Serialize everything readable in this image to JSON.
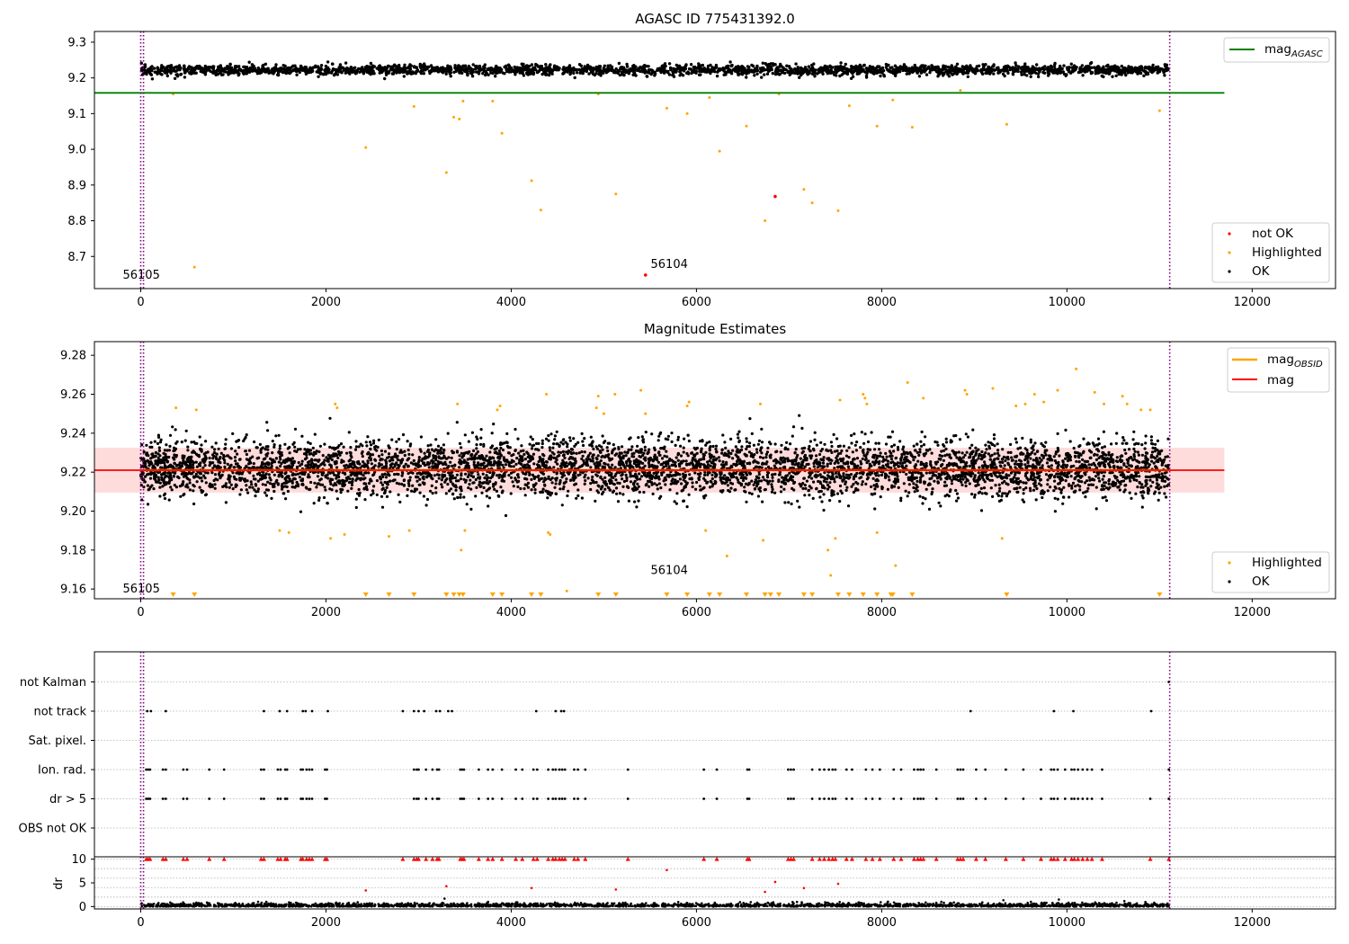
{
  "figure": {
    "colors": {
      "ok": "#000000",
      "highlighted": "#FFA500",
      "not_ok": "#FF0000",
      "mag_agasc": "#008000",
      "mag_obsid": "#FFA500",
      "mag": "#FF0000",
      "band": "#FFC0C0",
      "obs_boundary": "#800080",
      "grid": "#B0B0B0"
    }
  },
  "chart_data": [
    {
      "type": "scatter",
      "title": "AGASC ID 775431392.0",
      "xlim": [
        -500,
        12900
      ],
      "ylim": [
        8.61,
        9.33
      ],
      "x_ticks": [
        0,
        2000,
        4000,
        6000,
        8000,
        10000,
        12000
      ],
      "x_tick_labels": [
        "0",
        "2000",
        "4000",
        "6000",
        "8000",
        "10000",
        "12000"
      ],
      "y_ticks": [
        8.7,
        8.8,
        8.9,
        9.0,
        9.1,
        9.2,
        9.3
      ],
      "y_tick_labels": [
        "8.7",
        "8.8",
        "8.9",
        "9.0",
        "9.1",
        "9.2",
        "9.3"
      ],
      "obs_boundaries": [
        0,
        30,
        11110
      ],
      "annotations": [
        {
          "text": "56105",
          "x": 0,
          "y": 8.65
        },
        {
          "text": "56104",
          "x": 5700,
          "y": 8.68
        }
      ],
      "reference_lines": [
        {
          "name": "mag_AGASC",
          "label_main": "mag",
          "label_sub": "AGASC",
          "y": 9.158,
          "x_range": [
            -500,
            11700
          ]
        }
      ],
      "ok_band": {
        "center": 9.222,
        "spread": 0.013,
        "x_range": [
          0,
          11100
        ]
      },
      "series": [
        {
          "name": "not OK",
          "points": [
            [
              6850,
              8.868
            ],
            [
              5450,
              8.648
            ]
          ]
        },
        {
          "name": "Highlighted",
          "points": [
            [
              350,
              9.155
            ],
            [
              580,
              8.67
            ],
            [
              2430,
              9.005
            ],
            [
              2950,
              9.12
            ],
            [
              3300,
              8.935
            ],
            [
              3380,
              9.09
            ],
            [
              3440,
              9.085
            ],
            [
              3480,
              9.135
            ],
            [
              3800,
              9.135
            ],
            [
              3900,
              9.045
            ],
            [
              4220,
              8.912
            ],
            [
              4320,
              8.83
            ],
            [
              4940,
              9.155
            ],
            [
              5130,
              8.875
            ],
            [
              5680,
              9.115
            ],
            [
              5900,
              9.1
            ],
            [
              6140,
              9.145
            ],
            [
              6250,
              8.995
            ],
            [
              6540,
              9.065
            ],
            [
              6740,
              8.8
            ],
            [
              6890,
              9.155
            ],
            [
              7160,
              8.888
            ],
            [
              7250,
              8.85
            ],
            [
              7530,
              8.828
            ],
            [
              7650,
              9.122
            ],
            [
              7950,
              9.065
            ],
            [
              8120,
              9.138
            ],
            [
              8330,
              9.062
            ],
            [
              8850,
              9.165
            ],
            [
              9350,
              9.07
            ],
            [
              11000,
              9.108
            ]
          ]
        },
        {
          "name": "OK"
        }
      ],
      "legend": {
        "position": "lower right",
        "entries": [
          "not OK",
          "Highlighted",
          "OK"
        ]
      }
    },
    {
      "type": "scatter",
      "title": "Magnitude Estimates",
      "xlim": [
        -500,
        12900
      ],
      "ylim": [
        9.155,
        9.287
      ],
      "x_ticks": [
        0,
        2000,
        4000,
        6000,
        8000,
        10000,
        12000
      ],
      "x_tick_labels": [
        "0",
        "2000",
        "4000",
        "6000",
        "8000",
        "10000",
        "12000"
      ],
      "y_ticks": [
        9.16,
        9.18,
        9.2,
        9.22,
        9.24,
        9.26,
        9.28
      ],
      "y_tick_labels": [
        "9.16",
        "9.18",
        "9.20",
        "9.22",
        "9.24",
        "9.26",
        "9.28"
      ],
      "obs_boundaries": [
        0,
        30,
        11110
      ],
      "annotations": [
        {
          "text": "56105",
          "x": 0,
          "y": 9.1605
        },
        {
          "text": "56104",
          "x": 5700,
          "y": 9.17
        }
      ],
      "reference_lines": [
        {
          "name": "mag_OBSID",
          "label_main": "mag",
          "label_sub": "OBSID",
          "y": 9.221,
          "x_range": [
            0,
            11100
          ]
        },
        {
          "name": "mag",
          "label_main": "mag",
          "label_sub": "",
          "y": 9.221,
          "x_range": [
            -500,
            11700
          ]
        }
      ],
      "mag_band": {
        "y_range": [
          9.2095,
          9.2325
        ],
        "x_range": [
          -500,
          11700
        ]
      },
      "ok_band": {
        "center": 9.222,
        "spread": 0.013,
        "x_range": [
          0,
          11100
        ]
      },
      "out_of_range_markers_x": [
        350,
        580,
        2430,
        2680,
        2950,
        3300,
        3380,
        3440,
        3480,
        3800,
        3900,
        4220,
        4320,
        4940,
        5130,
        5680,
        5900,
        6140,
        6250,
        6540,
        6740,
        6800,
        6890,
        7160,
        7250,
        7530,
        7650,
        7800,
        7950,
        8100,
        8120,
        8330,
        9350,
        11000
      ],
      "series": [
        {
          "name": "Highlighted",
          "points": [
            [
              380,
              9.253
            ],
            [
              600,
              9.252
            ],
            [
              1500,
              9.19
            ],
            [
              1600,
              9.189
            ],
            [
              2050,
              9.186
            ],
            [
              2100,
              9.255
            ],
            [
              2120,
              9.253
            ],
            [
              2200,
              9.188
            ],
            [
              2680,
              9.187
            ],
            [
              2900,
              9.19
            ],
            [
              3420,
              9.255
            ],
            [
              3460,
              9.18
            ],
            [
              3500,
              9.19
            ],
            [
              3850,
              9.252
            ],
            [
              3880,
              9.254
            ],
            [
              4380,
              9.26
            ],
            [
              4400,
              9.189
            ],
            [
              4420,
              9.188
            ],
            [
              4600,
              9.159
            ],
            [
              4920,
              9.253
            ],
            [
              4940,
              9.259
            ],
            [
              5000,
              9.25
            ],
            [
              5120,
              9.26
            ],
            [
              5400,
              9.262
            ],
            [
              5450,
              9.25
            ],
            [
              5900,
              9.254
            ],
            [
              5920,
              9.256
            ],
            [
              6100,
              9.19
            ],
            [
              6330,
              9.177
            ],
            [
              6690,
              9.255
            ],
            [
              6720,
              9.185
            ],
            [
              7420,
              9.18
            ],
            [
              7450,
              9.167
            ],
            [
              7500,
              9.186
            ],
            [
              7550,
              9.257
            ],
            [
              7800,
              9.26
            ],
            [
              7820,
              9.258
            ],
            [
              7840,
              9.255
            ],
            [
              7950,
              9.189
            ],
            [
              8150,
              9.172
            ],
            [
              8280,
              9.266
            ],
            [
              8450,
              9.258
            ],
            [
              8900,
              9.262
            ],
            [
              8920,
              9.26
            ],
            [
              9200,
              9.263
            ],
            [
              9300,
              9.186
            ],
            [
              9450,
              9.254
            ],
            [
              9550,
              9.255
            ],
            [
              9650,
              9.26
            ],
            [
              9750,
              9.256
            ],
            [
              9900,
              9.262
            ],
            [
              10100,
              9.273
            ],
            [
              10300,
              9.261
            ],
            [
              10400,
              9.255
            ],
            [
              10600,
              9.259
            ],
            [
              10650,
              9.255
            ],
            [
              10800,
              9.252
            ],
            [
              10900,
              9.252
            ]
          ]
        },
        {
          "name": "OK"
        }
      ],
      "legend_lines": {
        "position": "upper right",
        "entries": [
          "mag_OBSID",
          "mag"
        ]
      },
      "legend": {
        "position": "lower right",
        "entries": [
          "Highlighted",
          "OK"
        ]
      }
    },
    {
      "type": "scatter",
      "title": "",
      "xlim": [
        -500,
        12900
      ],
      "x_ticks": [
        0,
        2000,
        4000,
        6000,
        8000,
        10000,
        12000
      ],
      "x_tick_labels": [
        "0",
        "2000",
        "4000",
        "6000",
        "8000",
        "10000",
        "12000"
      ],
      "flag_rows": [
        "not Kalman",
        "not track",
        "Sat. pixel.",
        "Ion. rad.",
        "dr > 5",
        "OBS not OK"
      ],
      "obs_boundaries": [
        0,
        30,
        11110
      ],
      "flags": {
        "not Kalman": [
          11100
        ],
        "not track": [
          70,
          110,
          270,
          1330,
          1500,
          1580,
          1750,
          1780,
          1850,
          2020,
          2830,
          2950,
          3000,
          3060,
          3190,
          3230,
          3320,
          3360,
          4270,
          4480,
          4540,
          4570,
          8960,
          9860,
          10070,
          10910
        ],
        "Sat. pixel.": [],
        "Ion. rad.": [
          60,
          80,
          100,
          240,
          270,
          460,
          500,
          740,
          900,
          1300,
          1330,
          1480,
          1510,
          1560,
          1580,
          1730,
          1750,
          1790,
          1820,
          1850,
          1990,
          2010,
          2950,
          2980,
          3000,
          3080,
          3150,
          3200,
          3220,
          3450,
          3470,
          3490,
          3650,
          3750,
          3800,
          3900,
          4050,
          4120,
          4240,
          4280,
          4400,
          4450,
          4480,
          4520,
          4550,
          4580,
          4680,
          4720,
          4800,
          5260,
          6080,
          6220,
          6550,
          6570,
          6990,
          7020,
          7050,
          7250,
          7330,
          7380,
          7430,
          7470,
          7500,
          7620,
          7680,
          7830,
          7900,
          7980,
          8130,
          8210,
          8350,
          8390,
          8420,
          8450,
          8590,
          8820,
          8850,
          8880,
          9020,
          9120,
          9340,
          9530,
          9720,
          9830,
          9860,
          9900,
          9980,
          10050,
          10080,
          10120,
          10170,
          10220,
          10270,
          10380,
          11100
        ],
        "dr > 5": [
          60,
          80,
          100,
          240,
          270,
          460,
          500,
          740,
          900,
          1300,
          1330,
          1480,
          1510,
          1560,
          1580,
          1730,
          1750,
          1790,
          1820,
          1850,
          1990,
          2010,
          2950,
          2980,
          3000,
          3080,
          3150,
          3200,
          3220,
          3450,
          3470,
          3490,
          3650,
          3750,
          3800,
          3900,
          4050,
          4120,
          4240,
          4280,
          4400,
          4450,
          4480,
          4520,
          4550,
          4580,
          4680,
          4720,
          4800,
          5260,
          6080,
          6220,
          6550,
          6570,
          6990,
          7020,
          7050,
          7250,
          7330,
          7380,
          7430,
          7470,
          7500,
          7620,
          7680,
          7830,
          7900,
          7980,
          8130,
          8210,
          8350,
          8390,
          8420,
          8450,
          8590,
          8820,
          8850,
          8880,
          9020,
          9120,
          9340,
          9530,
          9720,
          9830,
          9860,
          9900,
          9980,
          10050,
          10080,
          10120,
          10170,
          10220,
          10270,
          10380,
          10900,
          11100
        ],
        "OBS not OK": []
      }
    },
    {
      "type": "scatter",
      "title": "",
      "ylabel": "dr",
      "xlim": [
        -500,
        12900
      ],
      "ylim": [
        -0.5,
        10.5
      ],
      "x_ticks": [
        0,
        2000,
        4000,
        6000,
        8000,
        10000,
        12000
      ],
      "x_tick_labels": [
        "0",
        "2000",
        "4000",
        "6000",
        "8000",
        "10000",
        "12000"
      ],
      "y_ticks": [
        0,
        5,
        10
      ],
      "y_tick_labels": [
        "0",
        "5",
        "10"
      ],
      "obs_boundaries": [
        0,
        30,
        11110
      ],
      "dr_clipped_x": [
        60,
        80,
        100,
        240,
        270,
        460,
        500,
        740,
        900,
        1300,
        1330,
        1480,
        1510,
        1560,
        1580,
        1730,
        1750,
        1790,
        1820,
        1850,
        1990,
        2010,
        2830,
        2950,
        2980,
        3000,
        3080,
        3150,
        3200,
        3220,
        3450,
        3470,
        3490,
        3650,
        3750,
        3800,
        3900,
        4050,
        4120,
        4240,
        4280,
        4400,
        4450,
        4480,
        4520,
        4550,
        4580,
        4680,
        4720,
        4800,
        5260,
        6080,
        6220,
        6550,
        6570,
        6990,
        7020,
        7050,
        7250,
        7330,
        7380,
        7430,
        7470,
        7500,
        7620,
        7680,
        7830,
        7900,
        7980,
        8130,
        8210,
        8350,
        8390,
        8420,
        8450,
        8590,
        8820,
        8850,
        8880,
        9020,
        9120,
        9340,
        9530,
        9720,
        9830,
        9860,
        9900,
        9980,
        10050,
        10080,
        10120,
        10170,
        10220,
        10270,
        10380,
        10900,
        11100
      ],
      "dr_red_points": [
        [
          2430,
          3.4
        ],
        [
          3300,
          4.3
        ],
        [
          4220,
          3.9
        ],
        [
          5130,
          3.6
        ],
        [
          5680,
          7.7
        ],
        [
          6740,
          3.1
        ],
        [
          6850,
          5.2
        ],
        [
          7160,
          3.9
        ],
        [
          7530,
          4.8
        ]
      ]
    }
  ]
}
